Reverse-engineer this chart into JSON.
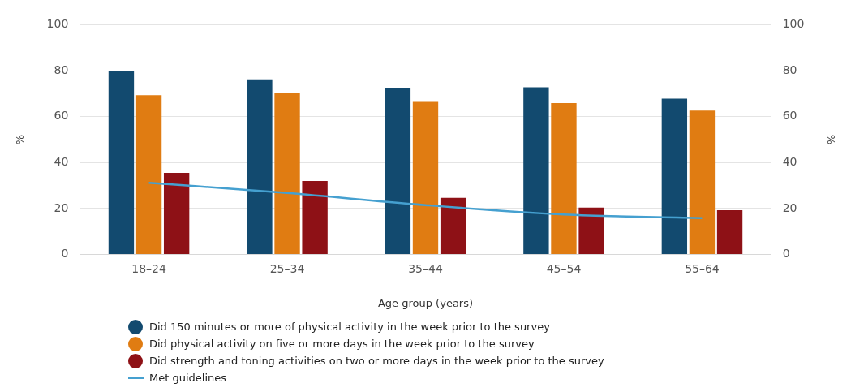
{
  "chart_data": {
    "type": "bar",
    "xlabel": "Age group (years)",
    "ylabel": "%",
    "y2label": "%",
    "categories": [
      "18–24",
      "25–34",
      "35–44",
      "45–54",
      "55–64"
    ],
    "series": [
      {
        "name": "Did 150 minutes or more of physical activity in the week prior to the survey",
        "color": "#124a6f",
        "values": [
          79.8,
          76.2,
          72.6,
          72.8,
          67.8
        ]
      },
      {
        "name": "Did physical activity on five or more days in the week prior to the survey",
        "color": "#e07c12",
        "values": [
          69.3,
          70.4,
          66.4,
          65.9,
          62.6
        ]
      },
      {
        "name": "Did strength and toning activities on two or more days in the week prior to the survey",
        "color": "#8e1116",
        "values": [
          35.5,
          32.0,
          24.7,
          20.4,
          19.3
        ]
      },
      {
        "name": "Met guidelines",
        "type": "line",
        "color": "#45a0d0",
        "values": [
          31.2,
          26.8,
          21.5,
          17.4,
          15.8
        ]
      }
    ],
    "ylim": [
      0,
      100
    ],
    "yticks": [
      0,
      20,
      40,
      60,
      80,
      100
    ],
    "y2lim": [
      0,
      100
    ],
    "y2ticks": [
      0,
      20,
      40,
      60,
      80,
      100
    ],
    "grid": "y",
    "legend": "bottom",
    "marker": "none"
  }
}
